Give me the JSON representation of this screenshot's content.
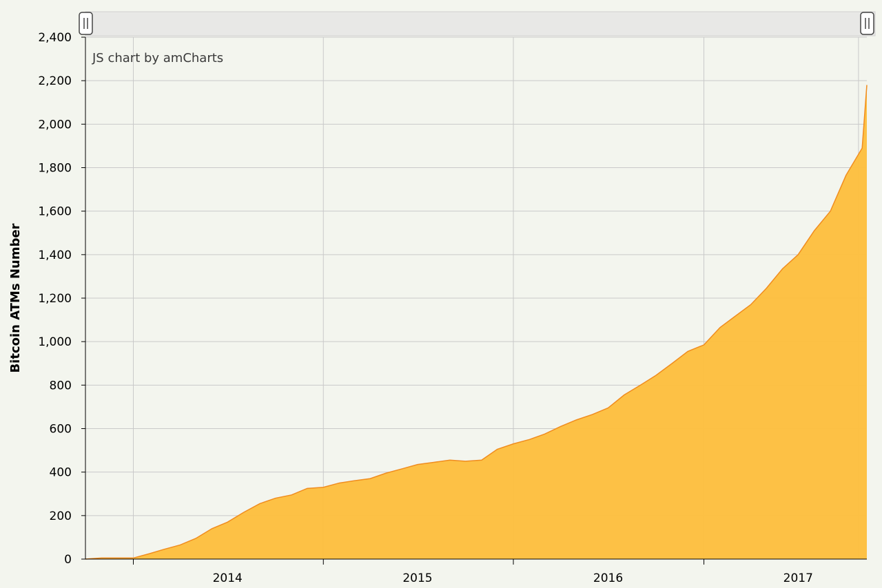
{
  "credit": "JS chart by amCharts",
  "scrollbar": {
    "left_handle": "grip-handle-icon",
    "right_handle": "grip-handle-icon"
  },
  "colors": {
    "fill": "#fdbf3f",
    "line": "#f08c1e",
    "grid": "#c9c9c9",
    "scrollbar_bg": "#e8e8e6",
    "background": "#f3f5ee"
  },
  "chart_data": {
    "type": "area",
    "ylabel": "Bitcoin ATMs Number",
    "xlabel": "",
    "ylim": [
      0,
      2400
    ],
    "yticks": [
      0,
      200,
      400,
      600,
      800,
      1000,
      1200,
      1400,
      1600,
      1800,
      2000,
      2200,
      2400
    ],
    "ytick_labels": [
      "0",
      "200",
      "400",
      "600",
      "800",
      "1,000",
      "1,200",
      "1,400",
      "1,600",
      "1,800",
      "2,000",
      "2,200",
      "2,400"
    ],
    "xlim": [
      "2013-10-01",
      "2017-11-10"
    ],
    "xticks": [
      "2014-01-01",
      "2015-01-01",
      "2016-01-01",
      "2017-01-01"
    ],
    "xtick_labels": [
      "2014",
      "2015",
      "2016",
      "2017"
    ],
    "grid": true,
    "x": [
      "2013-10-01",
      "2013-11-01",
      "2013-12-01",
      "2014-01-01",
      "2014-02-01",
      "2014-03-01",
      "2014-04-01",
      "2014-05-01",
      "2014-06-01",
      "2014-07-01",
      "2014-08-01",
      "2014-09-01",
      "2014-10-01",
      "2014-11-01",
      "2014-12-01",
      "2015-01-01",
      "2015-02-01",
      "2015-03-01",
      "2015-04-01",
      "2015-05-01",
      "2015-06-01",
      "2015-07-01",
      "2015-08-01",
      "2015-09-01",
      "2015-10-01",
      "2015-11-01",
      "2015-12-01",
      "2016-01-01",
      "2016-02-01",
      "2016-03-01",
      "2016-04-01",
      "2016-05-01",
      "2016-06-01",
      "2016-07-01",
      "2016-08-01",
      "2016-09-01",
      "2016-10-01",
      "2016-11-01",
      "2016-12-01",
      "2017-01-01",
      "2017-02-01",
      "2017-03-01",
      "2017-04-01",
      "2017-05-01",
      "2017-06-01",
      "2017-07-01",
      "2017-08-01",
      "2017-09-01",
      "2017-10-01",
      "2017-11-01",
      "2017-11-10"
    ],
    "values": [
      0,
      5,
      5,
      5,
      25,
      45,
      65,
      95,
      140,
      170,
      215,
      255,
      280,
      295,
      325,
      330,
      350,
      360,
      370,
      395,
      415,
      435,
      445,
      455,
      450,
      455,
      505,
      530,
      550,
      575,
      610,
      640,
      665,
      695,
      755,
      800,
      845,
      900,
      955,
      985,
      1065,
      1115,
      1170,
      1245,
      1335,
      1400,
      1510,
      1600,
      1765,
      1890,
      2180
    ]
  }
}
